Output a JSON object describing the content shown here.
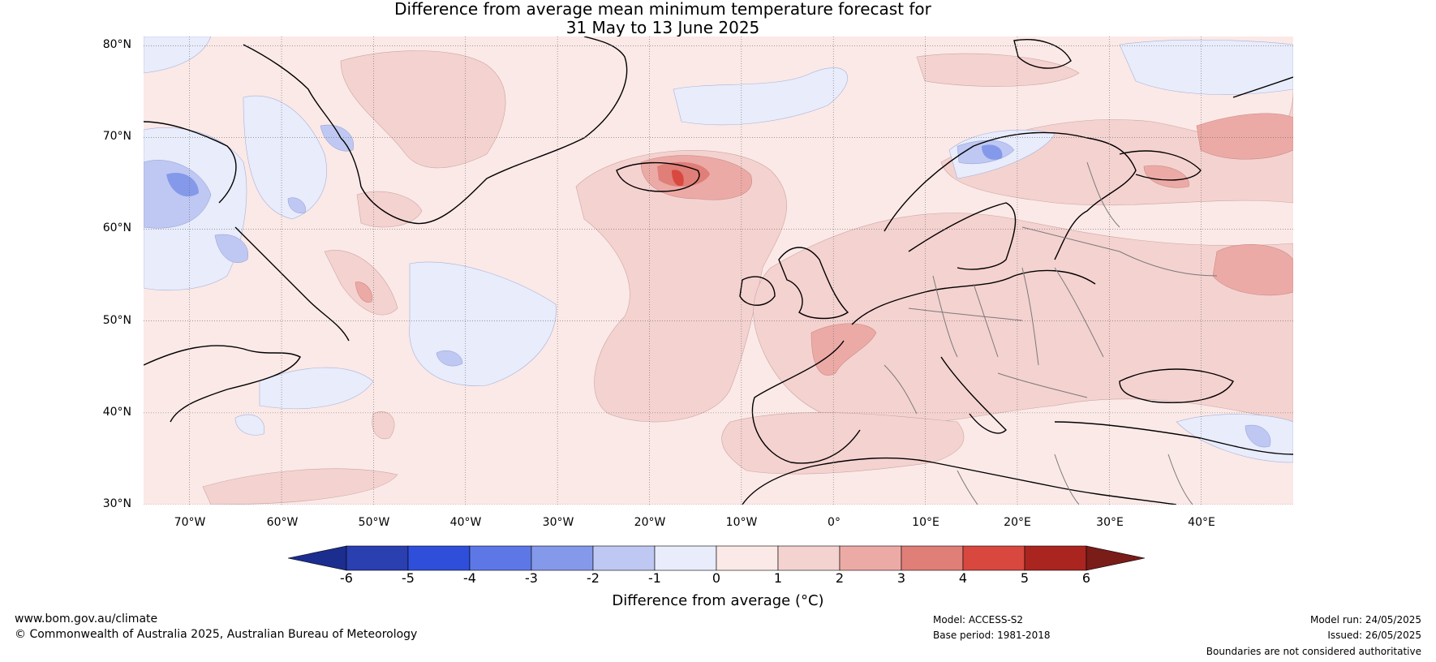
{
  "title": {
    "line1": "Difference from average mean minimum temperature forecast for",
    "line2": "31 May to 13 June 2025"
  },
  "map": {
    "lat_labels": [
      "80°N",
      "70°N",
      "60°N",
      "50°N",
      "40°N",
      "30°N"
    ],
    "lon_labels": [
      "70°W",
      "60°W",
      "50°W",
      "40°W",
      "30°W",
      "20°W",
      "10°W",
      "0°",
      "10°E",
      "20°E",
      "30°E",
      "40°E"
    ],
    "lat_range": [
      30,
      81
    ],
    "lon_range": [
      -75,
      50
    ]
  },
  "colorbar": {
    "ticks": [
      "-6",
      "-5",
      "-4",
      "-3",
      "-2",
      "-1",
      "0",
      "1",
      "2",
      "3",
      "4",
      "5",
      "6"
    ],
    "colors": [
      "#1b2d8f",
      "#2a3fb0",
      "#2f4fdb",
      "#5d78e6",
      "#8599ea",
      "#bfc8f2",
      "#e8ecfb",
      "#fbe9e7",
      "#f4d2d0",
      "#ecaaa6",
      "#e07e78",
      "#d8483f",
      "#aa2520",
      "#7a1c18"
    ],
    "label": "Difference from average (°C)"
  },
  "footer": {
    "website": "www.bom.gov.au/climate",
    "copyright": "© Commonwealth of Australia 2025, Australian Bureau of Meteorology",
    "model": "Model: ACCESS-S2",
    "base_period": "Base period: 1981-2018",
    "model_run": "Model run: 24/05/2025",
    "issued": "Issued: 26/05/2025",
    "disclaimer": "Boundaries are not considered authoritative"
  }
}
